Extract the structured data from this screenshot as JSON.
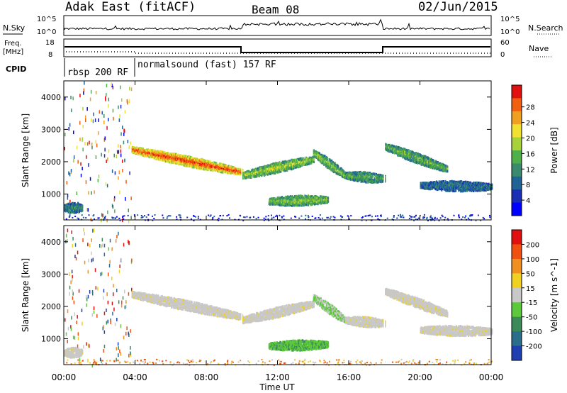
{
  "header": {
    "station": "Adak East (fitACF)",
    "beam": "Beam 08",
    "date": "02/Jun/2015"
  },
  "top_panels": {
    "nsky_label": "N.Sky",
    "nsky_ticks": [
      "10^5",
      "10^0"
    ],
    "nsearch_label": "N.Search",
    "nsearch_ticks": [
      "10^5",
      "10^0"
    ],
    "freq_label": "Freq.",
    "freq_unit": "[MHz]",
    "freq_ticks": [
      "18",
      "8"
    ],
    "nave_label": "Nave",
    "nave_ticks": [
      "60",
      "0"
    ],
    "cpid_label": "CPID",
    "cpid_segments": [
      "rbsp 200 RF",
      "normalsound (fast) 157 RF"
    ]
  },
  "chart_data": [
    {
      "type": "heatmap",
      "title": "",
      "ylabel": "Slant Range [km]",
      "xlabel": "",
      "x_ticks": [
        "00:00",
        "04:00",
        "08:00",
        "12:00",
        "16:00",
        "20:00",
        "00:00"
      ],
      "y_ticks": [
        1000,
        2000,
        3000,
        4000
      ],
      "ylim": [
        200,
        4500
      ],
      "xlim_hours": [
        0,
        24
      ],
      "colorbar": {
        "label": "Power [dB]",
        "ticks": [
          "4",
          "8",
          "12",
          "16",
          "20",
          "24",
          "28"
        ],
        "colors": [
          "#0000ff",
          "#1a2fb5",
          "#1e6496",
          "#3c8a6e",
          "#4fb04a",
          "#a8d23a",
          "#f0e030",
          "#f0a020",
          "#f06010",
          "#e01010"
        ]
      },
      "echo_bands": [
        {
          "t_start": 0.0,
          "t_end": 1.0,
          "r_start": 600,
          "r_end": 600,
          "level": 0.2
        },
        {
          "t_start": 3.8,
          "t_end": 10.0,
          "r_start": 2400,
          "r_end": 1700,
          "level": 0.85
        },
        {
          "t_start": 10.0,
          "t_end": 14.0,
          "r_start": 1600,
          "r_end": 2100,
          "level": 0.45
        },
        {
          "t_start": 14.0,
          "t_end": 15.8,
          "r_start": 2300,
          "r_end": 1600,
          "level": 0.4
        },
        {
          "t_start": 15.8,
          "t_end": 18.0,
          "r_start": 1600,
          "r_end": 1500,
          "level": 0.3
        },
        {
          "t_start": 11.5,
          "t_end": 14.8,
          "r_start": 800,
          "r_end": 850,
          "level": 0.4
        },
        {
          "t_start": 18.0,
          "t_end": 21.5,
          "r_start": 2500,
          "r_end": 1800,
          "level": 0.35
        },
        {
          "t_start": 20.0,
          "t_end": 24.0,
          "r_start": 1300,
          "r_end": 1250,
          "level": 0.15
        }
      ]
    },
    {
      "type": "heatmap",
      "title": "",
      "ylabel": "Slant Range [km]",
      "xlabel": "Time UT",
      "x_ticks": [
        "00:00",
        "04:00",
        "08:00",
        "12:00",
        "16:00",
        "20:00",
        "00:00"
      ],
      "y_ticks": [
        1000,
        2000,
        3000,
        4000
      ],
      "ylim": [
        200,
        4500
      ],
      "xlim_hours": [
        0,
        24
      ],
      "colorbar": {
        "label": "Velocity [m s^-1]",
        "ticks": [
          "200",
          "100",
          "50",
          "15",
          "-15",
          "-50",
          "-100",
          "-200"
        ],
        "colors": [
          "#1e3fb0",
          "#2a6e8c",
          "#3c8a5a",
          "#5cc83c",
          "#c8c8c8",
          "#f0d020",
          "#f09020",
          "#f05010",
          "#e01010"
        ]
      },
      "echo_bands": [
        {
          "t_start": 0.0,
          "t_end": 1.0,
          "r_start": 600,
          "r_end": 600,
          "level": 0.0
        },
        {
          "t_start": 3.8,
          "t_end": 10.0,
          "r_start": 2400,
          "r_end": 1700,
          "level": 0.0
        },
        {
          "t_start": 10.0,
          "t_end": 14.0,
          "r_start": 1600,
          "r_end": 2100,
          "level": 0.0
        },
        {
          "t_start": 14.0,
          "t_end": 15.8,
          "r_start": 2300,
          "r_end": 1600,
          "level": 0.3
        },
        {
          "t_start": 15.8,
          "t_end": 18.0,
          "r_start": 1600,
          "r_end": 1500,
          "level": 0.0
        },
        {
          "t_start": 11.5,
          "t_end": 14.8,
          "r_start": 800,
          "r_end": 850,
          "level": 0.6
        },
        {
          "t_start": 18.0,
          "t_end": 21.5,
          "r_start": 2500,
          "r_end": 1800,
          "level": 0.0
        },
        {
          "t_start": 20.0,
          "t_end": 24.0,
          "r_start": 1300,
          "r_end": 1250,
          "level": 0.0
        }
      ]
    }
  ]
}
